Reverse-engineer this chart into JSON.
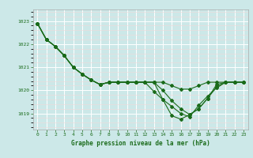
{
  "xlabel": "Graphe pression niveau de la mer (hPa)",
  "bg_color": "#cce8e8",
  "grid_color": "#ffffff",
  "grid_minor_color": "#e0f0f0",
  "line_color": "#1a6b1a",
  "tick_color": "#1a6b1a",
  "spine_color": "#aaaaaa",
  "x_ticks": [
    0,
    1,
    2,
    3,
    4,
    5,
    6,
    7,
    8,
    9,
    10,
    11,
    12,
    13,
    14,
    15,
    16,
    17,
    18,
    19,
    20,
    21,
    22,
    23
  ],
  "y_ticks": [
    1019,
    1020,
    1021,
    1022,
    1023
  ],
  "ylim": [
    1018.3,
    1023.5
  ],
  "xlim": [
    -0.5,
    23.5
  ],
  "series": [
    [
      1022.9,
      1022.2,
      1021.9,
      1021.5,
      1021.0,
      1020.7,
      1020.45,
      1020.25,
      1020.35,
      1020.35,
      1020.35,
      1020.35,
      1020.35,
      1020.35,
      1020.35,
      1020.2,
      1020.05,
      1020.05,
      1020.2,
      1020.35,
      1020.35,
      1020.35,
      1020.35,
      1020.35
    ],
    [
      1022.9,
      1022.2,
      1021.9,
      1021.5,
      1021.0,
      1020.7,
      1020.45,
      1020.25,
      1020.35,
      1020.35,
      1020.35,
      1020.35,
      1020.35,
      1020.35,
      1020.0,
      1019.55,
      1019.2,
      1018.95,
      1019.2,
      1019.65,
      1020.15,
      1020.35,
      1020.35,
      1020.35
    ],
    [
      1022.9,
      1022.2,
      1021.9,
      1021.5,
      1021.0,
      1020.7,
      1020.45,
      1020.25,
      1020.35,
      1020.35,
      1020.35,
      1020.35,
      1020.35,
      1020.35,
      1019.6,
      1018.9,
      1018.75,
      1018.95,
      1019.2,
      1019.65,
      1020.25,
      1020.35,
      1020.35,
      1020.35
    ],
    [
      1022.9,
      1022.2,
      1021.9,
      1021.5,
      1021.0,
      1020.7,
      1020.45,
      1020.25,
      1020.35,
      1020.35,
      1020.35,
      1020.35,
      1020.35,
      1019.95,
      1019.6,
      1019.3,
      1019.0,
      1018.85,
      1019.35,
      1019.75,
      1020.1,
      1020.35,
      1020.35,
      1020.35
    ]
  ]
}
